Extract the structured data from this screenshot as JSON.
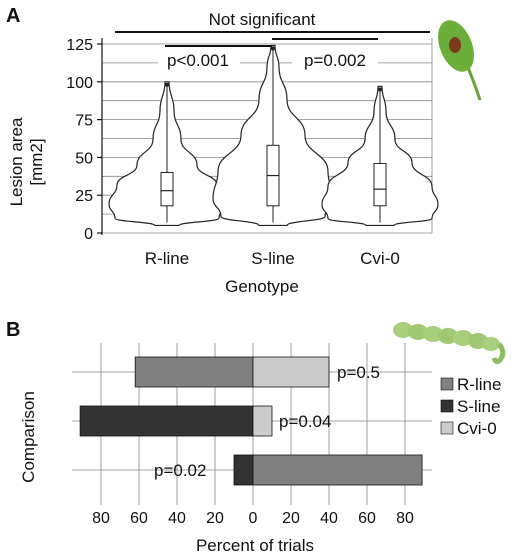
{
  "panel_a": {
    "label": "A",
    "ylabel_line1": "Lesion area",
    "ylabel_line2": "[mm2]",
    "xlabel": "Genotype",
    "top_annotation": "Not significant",
    "comparisons": [
      {
        "text": "p<0.001",
        "between": [
          "R-line",
          "S-line"
        ]
      },
      {
        "text": "p=0.002",
        "between": [
          "S-line",
          "Cvi-0"
        ]
      }
    ],
    "leaf_icon": "leaf-lesion-icon"
  },
  "panel_b": {
    "label": "B",
    "ylabel": "Comparison",
    "xlabel": "Percent of trials",
    "caterpillar_icon": "caterpillar-icon"
  },
  "colors": {
    "r_line": "#808080",
    "s_line": "#333333",
    "cvi_0": "#cccccc"
  },
  "chart_data": [
    {
      "type": "violin",
      "categories": [
        "R-line",
        "S-line",
        "Cvi-0"
      ],
      "ylim": [
        0,
        130
      ],
      "yticks": [
        0,
        25,
        50,
        75,
        100,
        125
      ],
      "grid": true,
      "boxes": [
        {
          "name": "R-line",
          "min": 5,
          "q1": 18,
          "median": 28,
          "q3": 40,
          "max": 100
        },
        {
          "name": "S-line",
          "min": 5,
          "q1": 18,
          "median": 38,
          "q3": 58,
          "max": 124
        },
        {
          "name": "Cvi-0",
          "min": 5,
          "q1": 18,
          "median": 29,
          "q3": 46,
          "max": 97
        }
      ]
    },
    {
      "type": "bar",
      "orientation": "horizontal",
      "xlim": [
        -100,
        100
      ],
      "xticks": [
        -80,
        -60,
        -40,
        -20,
        0,
        20,
        40,
        60,
        80
      ],
      "xtick_labels": [
        "80",
        "60",
        "40",
        "20",
        "0",
        "20",
        "40",
        "60",
        "80"
      ],
      "legend": {
        "placement": "right",
        "entries": [
          "R-line",
          "S-line",
          "Cvi-0"
        ]
      },
      "rows": [
        {
          "left_series": "R-line",
          "left_value": 62,
          "right_series": "Cvi-0",
          "right_value": 40,
          "p_label": "p=0.5"
        },
        {
          "left_series": "S-line",
          "left_value": 91,
          "right_series": "Cvi-0",
          "right_value": 10,
          "p_label": "p=0.04"
        },
        {
          "left_series": "S-line",
          "left_value": 10,
          "right_series": "R-line",
          "right_value": 89,
          "p_label": "p=0.02"
        }
      ]
    }
  ]
}
